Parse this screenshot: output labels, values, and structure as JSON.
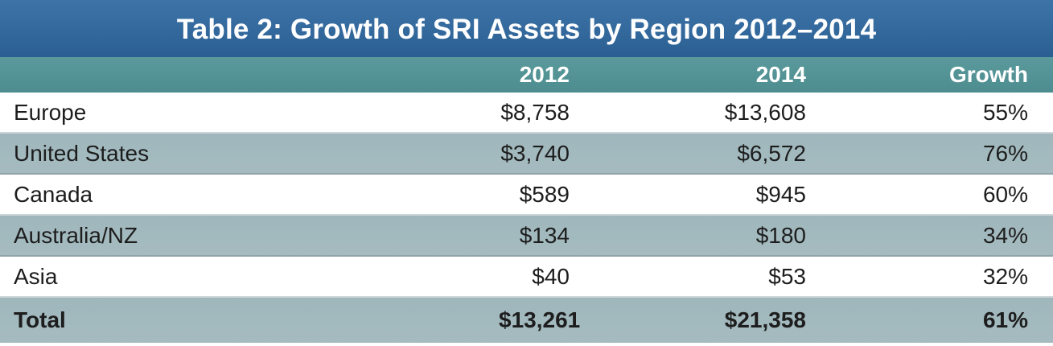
{
  "title": "Table 2: Growth of SRI Assets by Region 2012–2014",
  "headers": {
    "region": "",
    "y2012": "2012",
    "y2014": "2014",
    "growth": "Growth"
  },
  "rows": [
    {
      "region": "Europe",
      "y2012": "$8,758",
      "y2014": "$13,608",
      "growth": "55%"
    },
    {
      "region": "United States",
      "y2012": "$3,740",
      "y2014": "$6,572",
      "growth": "76%"
    },
    {
      "region": "Canada",
      "y2012": "$589",
      "y2014": "$945",
      "growth": "60%"
    },
    {
      "region": "Australia/NZ",
      "y2012": "$134",
      "y2014": "$180",
      "growth": "34%"
    },
    {
      "region": "Asia",
      "y2012": "$40",
      "y2014": "$53",
      "growth": "32%"
    }
  ],
  "total": {
    "region": "Total",
    "y2012": "$13,261",
    "y2014": "$21,358",
    "growth": "61%"
  },
  "colors": {
    "title_bg": "#3068a0",
    "header_bg": "#5493a0",
    "shaded_row": "#a1b9be"
  }
}
